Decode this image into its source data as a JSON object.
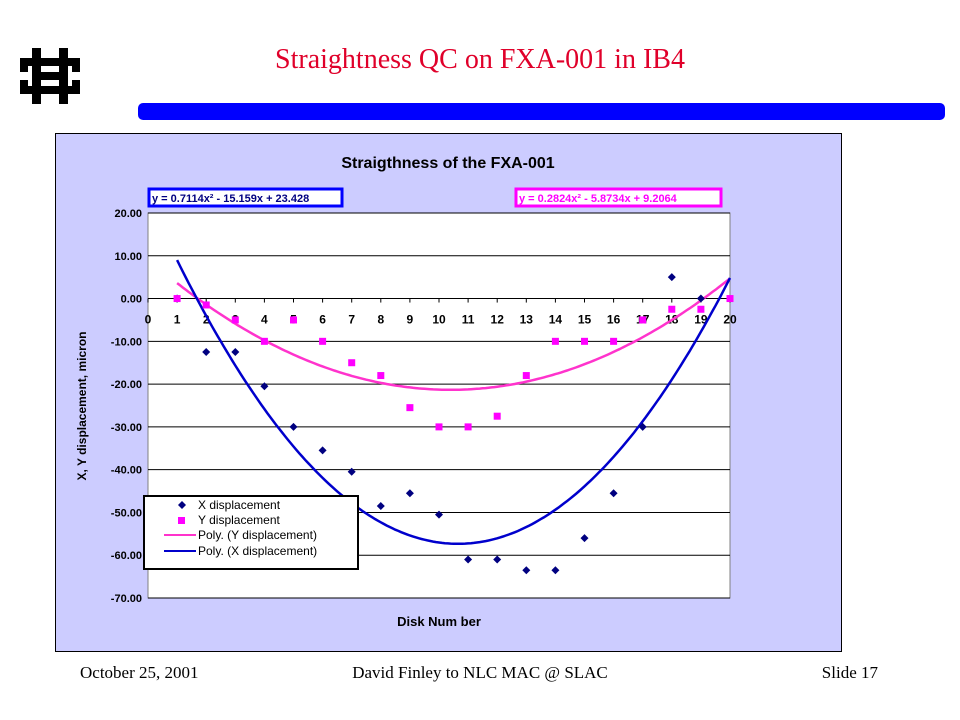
{
  "slide": {
    "title": "Straightness QC on FXA-001 in IB4",
    "footer_date": "October 25, 2001",
    "footer_center": "David Finley to NLC MAC @ SLAC",
    "footer_slide": "Slide 17"
  },
  "colors": {
    "title": "#e0002a",
    "bar": "#0000ff",
    "chart_bg": "#ccccff",
    "plot_bg": "#ffffff",
    "x_series": "#000080",
    "y_series": "#ff00ff",
    "x_fit": "#0000cc",
    "y_fit": "#ff33cc"
  },
  "icons": {
    "logo": "fermilab-logo-icon"
  },
  "chart_data": {
    "type": "scatter",
    "title": "Straigthness of the FXA-001",
    "xlabel": "Disk Num ber",
    "ylabel": "X, Y displacement, micron",
    "xlim": [
      0,
      20
    ],
    "ylim": [
      -70,
      20
    ],
    "x_ticks": [
      0,
      1,
      2,
      3,
      4,
      5,
      6,
      7,
      8,
      9,
      10,
      11,
      12,
      13,
      14,
      15,
      16,
      17,
      18,
      19,
      20
    ],
    "y_ticks": [
      "20.00",
      "10.00",
      "0.00",
      "-10.00",
      "-20.00",
      "-30.00",
      "-40.00",
      "-50.00",
      "-60.00",
      "-70.00"
    ],
    "grid": "horizontal",
    "legend_position": "bottom-left",
    "series": [
      {
        "name": "X displacement",
        "marker": "diamond",
        "x": [
          1,
          2,
          3,
          4,
          5,
          6,
          7,
          8,
          9,
          10,
          11,
          12,
          13,
          14,
          15,
          16,
          17,
          18,
          19
        ],
        "y": [
          0,
          -12.5,
          -12.5,
          -20.5,
          -30,
          -35.5,
          -40.5,
          -48.5,
          -45.5,
          -50.5,
          -61,
          -61,
          -63.5,
          -63.5,
          -56,
          -45.5,
          -30,
          5,
          0
        ]
      },
      {
        "name": "Y displacement",
        "marker": "square",
        "x": [
          1,
          2,
          3,
          4,
          5,
          6,
          7,
          8,
          9,
          10,
          11,
          12,
          13,
          14,
          15,
          16,
          17,
          18,
          19,
          20
        ],
        "y": [
          0,
          -1.5,
          -5,
          -10,
          -5,
          -10,
          -15,
          -18,
          -25.5,
          -30,
          -30,
          -27.5,
          -18,
          -10,
          -10,
          -10,
          -5,
          -2.5,
          -2.5,
          0
        ]
      }
    ],
    "trendlines": [
      {
        "name": "Poly. (Y displacement)",
        "equation": "y = 0.2824x² - 5.8734x + 9.2064",
        "coeffs": [
          0.2824,
          -5.8734,
          9.2064
        ]
      },
      {
        "name": "Poly. (X displacement)",
        "equation": "y = 0.7114x² - 15.159x + 23.428",
        "coeffs": [
          0.7114,
          -15.159,
          23.428
        ]
      }
    ]
  }
}
